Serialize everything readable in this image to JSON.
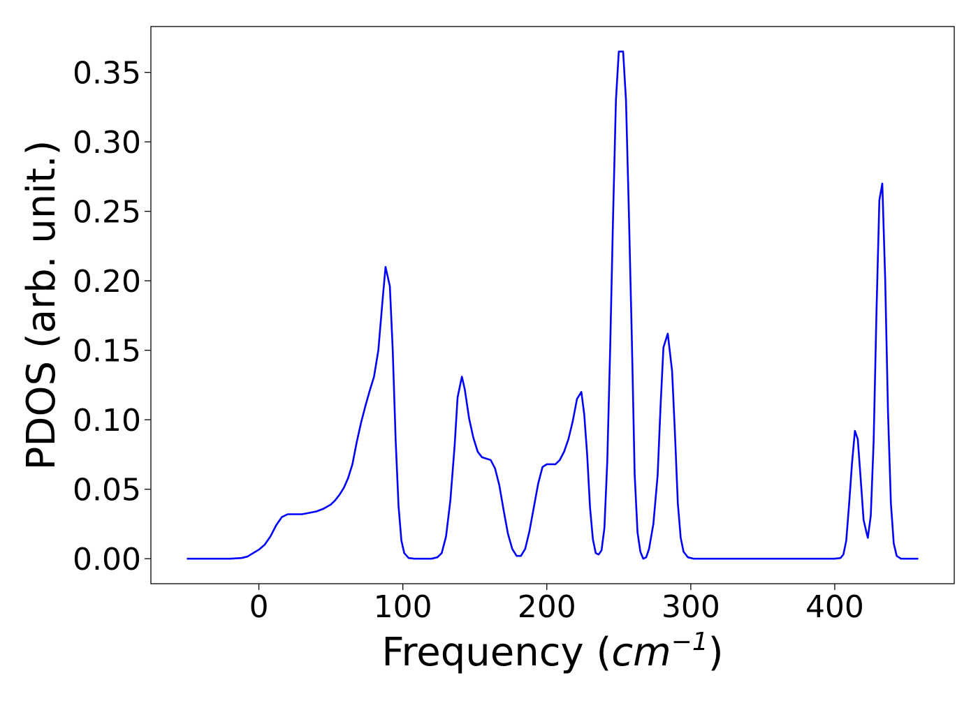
{
  "chart_data": {
    "type": "line",
    "title": "",
    "xlabel": "Frequency (",
    "xlabel_math": "cm",
    "xlabel_sup": "−1",
    "xlabel_close": ")",
    "ylabel": "PDOS (arb. unit.)",
    "xlim": [
      -75,
      483
    ],
    "ylim": [
      -0.018,
      0.383
    ],
    "x_ticks": [
      0,
      100,
      200,
      300,
      400
    ],
    "x_tick_labels": [
      "0",
      "100",
      "200",
      "300",
      "400"
    ],
    "y_ticks": [
      0.0,
      0.05,
      0.1,
      0.15,
      0.2,
      0.25,
      0.3,
      0.35
    ],
    "y_tick_labels": [
      "0.00",
      "0.05",
      "0.10",
      "0.15",
      "0.20",
      "0.25",
      "0.30",
      "0.35"
    ],
    "grid": false,
    "legend": "none",
    "series": [
      {
        "color": "#0000ff",
        "points": [
          [
            -50,
            0.0
          ],
          [
            -20,
            0.0
          ],
          [
            -12,
            0.0005
          ],
          [
            -8,
            0.0015
          ],
          [
            -4,
            0.004
          ],
          [
            0,
            0.0065
          ],
          [
            4,
            0.01
          ],
          [
            8,
            0.016
          ],
          [
            12,
            0.024
          ],
          [
            16,
            0.03
          ],
          [
            20,
            0.032
          ],
          [
            25,
            0.032
          ],
          [
            30,
            0.032
          ],
          [
            35,
            0.033
          ],
          [
            40,
            0.034
          ],
          [
            45,
            0.036
          ],
          [
            50,
            0.039
          ],
          [
            53,
            0.042
          ],
          [
            56,
            0.046
          ],
          [
            59,
            0.051
          ],
          [
            62,
            0.058
          ],
          [
            65,
            0.068
          ],
          [
            68,
            0.084
          ],
          [
            71,
            0.098
          ],
          [
            74,
            0.11
          ],
          [
            77,
            0.121
          ],
          [
            80,
            0.131
          ],
          [
            83,
            0.15
          ],
          [
            86,
            0.187
          ],
          [
            88,
            0.21
          ],
          [
            91,
            0.196
          ],
          [
            93,
            0.15
          ],
          [
            95,
            0.085
          ],
          [
            97,
            0.038
          ],
          [
            99,
            0.013
          ],
          [
            101,
            0.004
          ],
          [
            104,
            0.0005
          ],
          [
            108,
            0.0
          ],
          [
            120,
            0.0
          ],
          [
            124,
            0.001
          ],
          [
            127,
            0.004
          ],
          [
            130,
            0.016
          ],
          [
            133,
            0.042
          ],
          [
            136,
            0.082
          ],
          [
            138,
            0.116
          ],
          [
            141,
            0.131
          ],
          [
            143,
            0.122
          ],
          [
            146,
            0.101
          ],
          [
            149,
            0.087
          ],
          [
            152,
            0.077
          ],
          [
            155,
            0.073
          ],
          [
            158,
            0.072
          ],
          [
            161,
            0.071
          ],
          [
            164,
            0.065
          ],
          [
            167,
            0.053
          ],
          [
            170,
            0.035
          ],
          [
            173,
            0.018
          ],
          [
            176,
            0.007
          ],
          [
            179,
            0.002
          ],
          [
            182,
            0.002
          ],
          [
            185,
            0.007
          ],
          [
            188,
            0.02
          ],
          [
            191,
            0.037
          ],
          [
            194,
            0.054
          ],
          [
            197,
            0.066
          ],
          [
            200,
            0.068
          ],
          [
            203,
            0.068
          ],
          [
            206,
            0.068
          ],
          [
            209,
            0.071
          ],
          [
            212,
            0.077
          ],
          [
            215,
            0.086
          ],
          [
            218,
            0.099
          ],
          [
            221,
            0.115
          ],
          [
            224,
            0.12
          ],
          [
            226,
            0.104
          ],
          [
            228,
            0.075
          ],
          [
            230,
            0.037
          ],
          [
            232,
            0.014
          ],
          [
            234,
            0.004
          ],
          [
            236,
            0.003
          ],
          [
            238,
            0.006
          ],
          [
            240,
            0.022
          ],
          [
            242,
            0.07
          ],
          [
            244,
            0.15
          ],
          [
            246,
            0.246
          ],
          [
            248,
            0.33
          ],
          [
            250,
            0.365
          ],
          [
            253,
            0.365
          ],
          [
            255,
            0.33
          ],
          [
            257,
            0.25
          ],
          [
            259,
            0.16
          ],
          [
            261,
            0.061
          ],
          [
            263,
            0.019
          ],
          [
            265,
            0.005
          ],
          [
            267,
            0.0
          ],
          [
            269,
            0.001
          ],
          [
            271,
            0.007
          ],
          [
            274,
            0.025
          ],
          [
            277,
            0.06
          ],
          [
            279,
            0.11
          ],
          [
            281,
            0.152
          ],
          [
            284,
            0.162
          ],
          [
            287,
            0.135
          ],
          [
            289,
            0.09
          ],
          [
            291,
            0.04
          ],
          [
            293,
            0.015
          ],
          [
            295,
            0.005
          ],
          [
            298,
            0.001
          ],
          [
            302,
            0.0
          ],
          [
            400,
            0.0
          ],
          [
            404,
            0.0005
          ],
          [
            406,
            0.003
          ],
          [
            408,
            0.013
          ],
          [
            410,
            0.04
          ],
          [
            412,
            0.069
          ],
          [
            414,
            0.092
          ],
          [
            416,
            0.086
          ],
          [
            418,
            0.058
          ],
          [
            420,
            0.028
          ],
          [
            422,
            0.019
          ],
          [
            423,
            0.015
          ],
          [
            425,
            0.031
          ],
          [
            427,
            0.084
          ],
          [
            429,
            0.178
          ],
          [
            431,
            0.258
          ],
          [
            433,
            0.27
          ],
          [
            435,
            0.202
          ],
          [
            437,
            0.105
          ],
          [
            439,
            0.04
          ],
          [
            441,
            0.011
          ],
          [
            443,
            0.002
          ],
          [
            446,
            0.0
          ],
          [
            458,
            0.0
          ]
        ]
      }
    ]
  }
}
